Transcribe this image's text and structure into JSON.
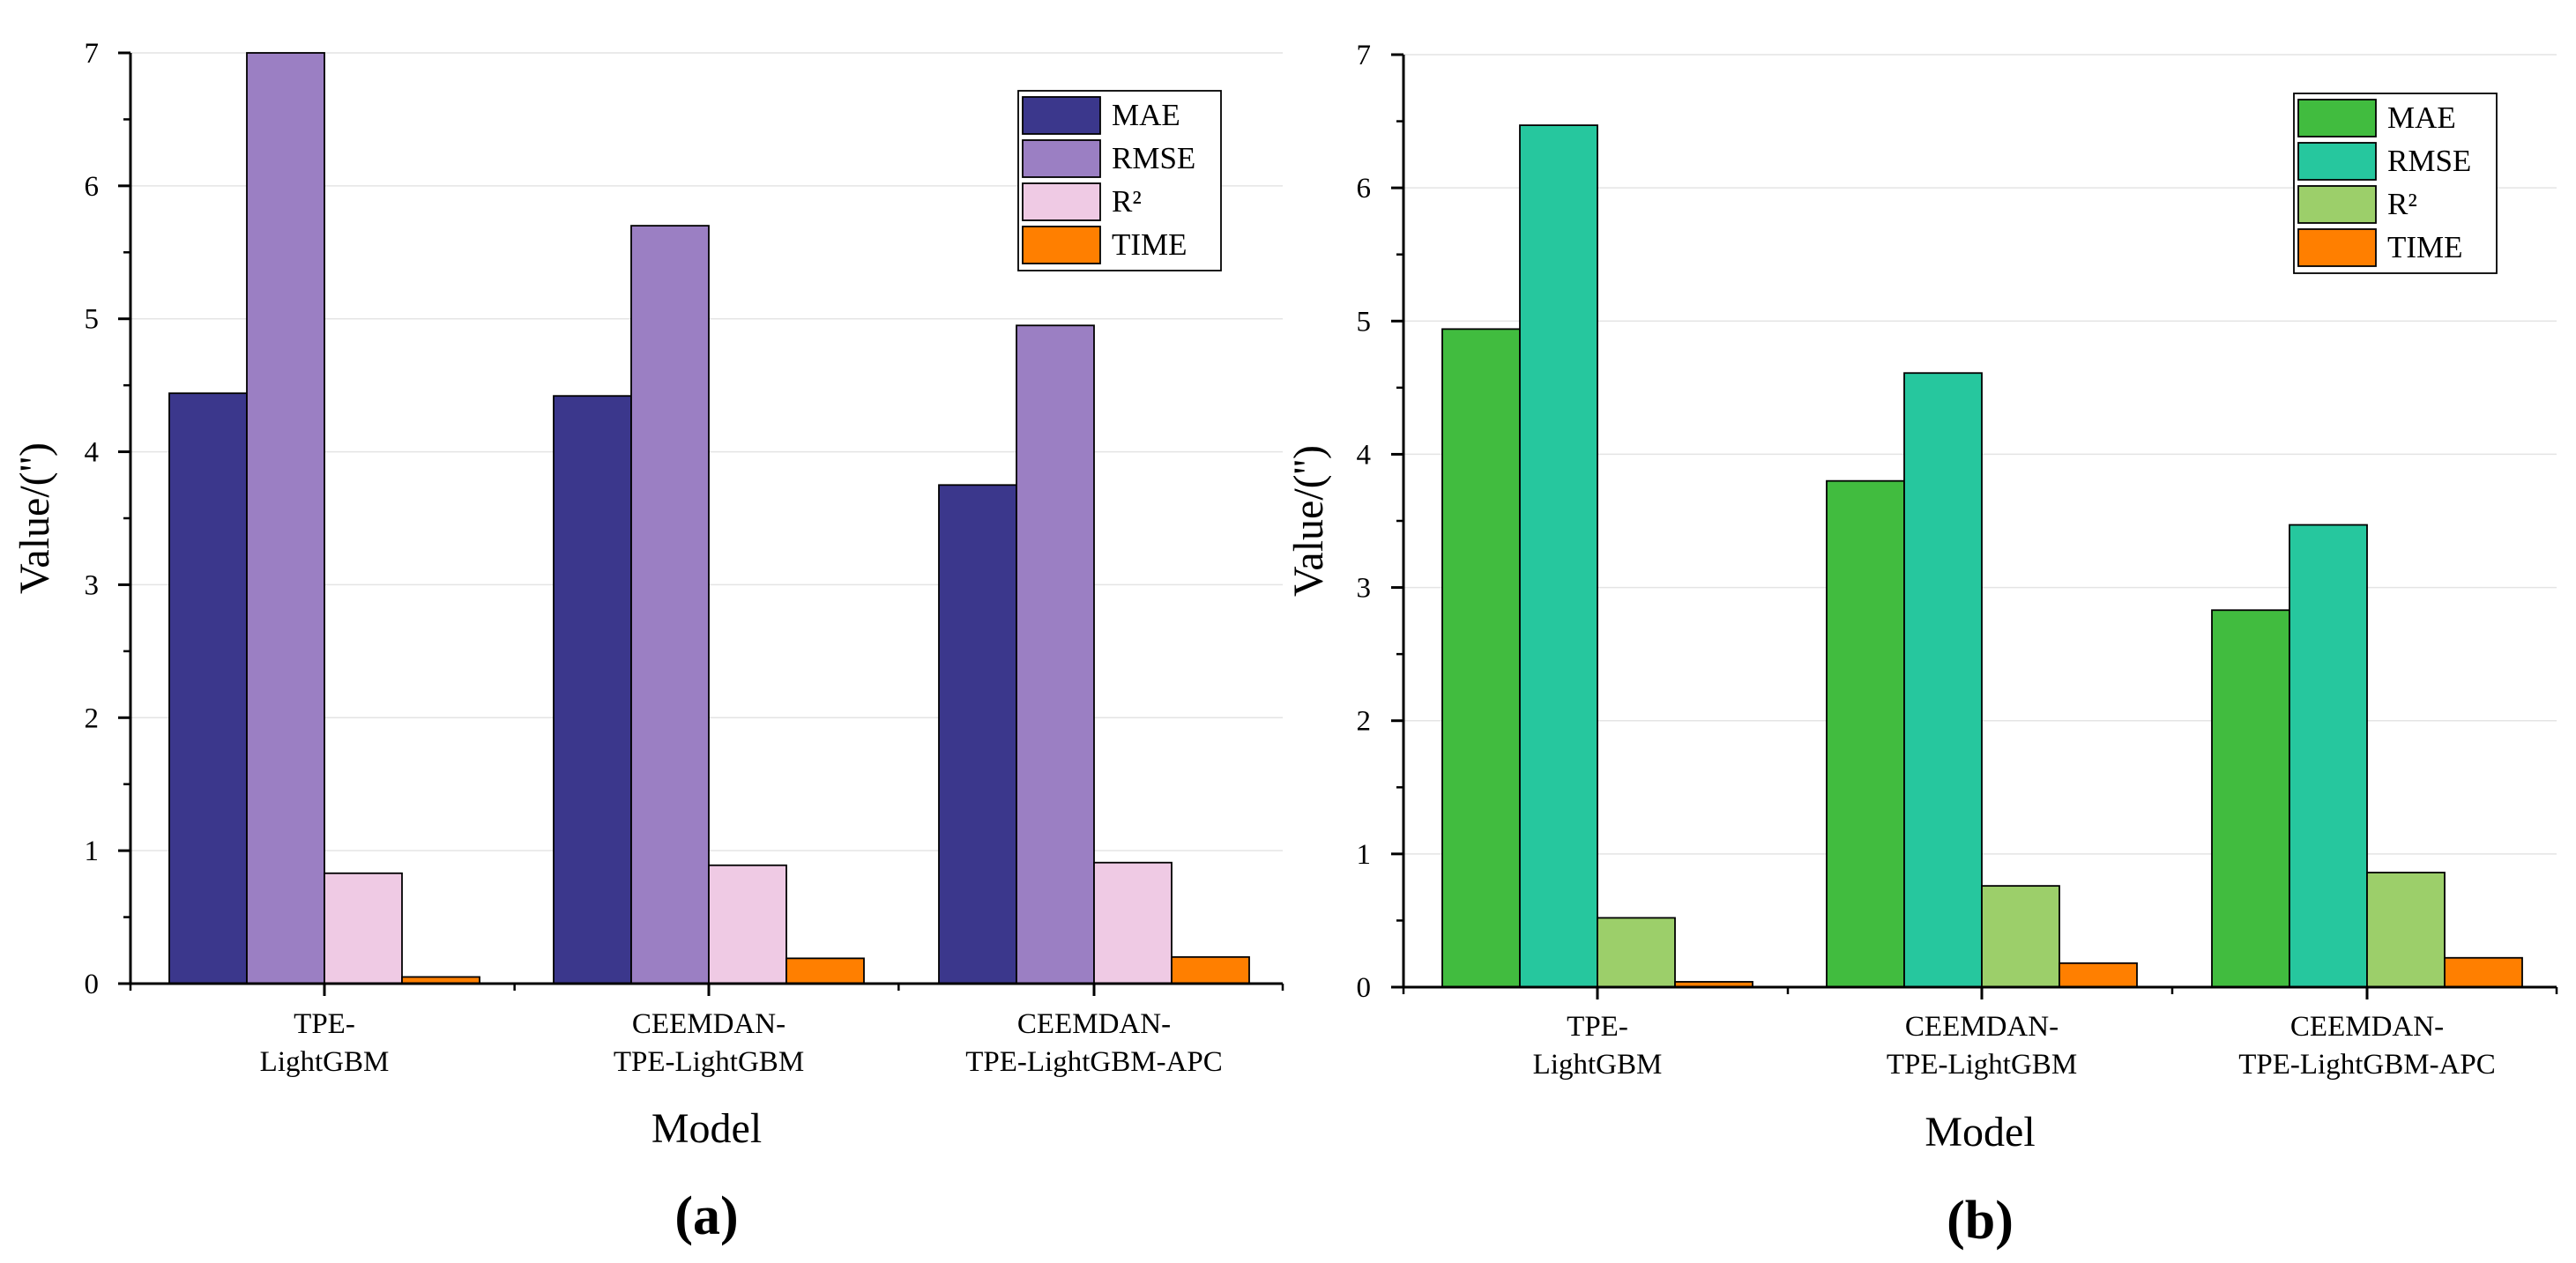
{
  "chart_data": [
    {
      "type": "bar",
      "panel_label": "(a)",
      "categories": [
        [
          "TPE-",
          "LightGBM"
        ],
        [
          "CEEMDAN-",
          "TPE-LightGBM"
        ],
        [
          "CEEMDAN-",
          "TPE-LightGBM-APC"
        ]
      ],
      "series": [
        {
          "name": "MAE",
          "color": "#3b378c",
          "values": [
            4.44,
            4.42,
            3.75
          ]
        },
        {
          "name": "RMSE",
          "color": "#9b7fc3",
          "values": [
            7.0,
            5.7,
            4.95
          ]
        },
        {
          "name": "R²",
          "color": "#efcae4",
          "values": [
            0.83,
            0.89,
            0.91
          ]
        },
        {
          "name": "TIME",
          "color": "#ff7f00",
          "values": [
            0.05,
            0.19,
            0.2
          ]
        }
      ],
      "xlabel": "Model",
      "ylabel": "Value/('')",
      "ylim": [
        0,
        7
      ],
      "yticks": [
        "0",
        "1",
        "2",
        "3",
        "4",
        "5",
        "6",
        "7"
      ],
      "legend_position": "top-right",
      "grid": true
    },
    {
      "type": "bar",
      "panel_label": "(b)",
      "categories": [
        [
          "TPE-",
          "LightGBM"
        ],
        [
          "CEEMDAN-",
          "TPE-LightGBM"
        ],
        [
          "CEEMDAN-",
          "TPE-LightGBM-APC"
        ]
      ],
      "series": [
        {
          "name": "MAE",
          "color": "#41bc3f",
          "values": [
            4.94,
            3.8,
            2.83
          ]
        },
        {
          "name": "RMSE",
          "color": "#26c79e",
          "values": [
            6.47,
            4.61,
            3.47
          ]
        },
        {
          "name": "R²",
          "color": "#9ccf6a",
          "values": [
            0.52,
            0.76,
            0.86
          ]
        },
        {
          "name": "TIME",
          "color": "#ff7f00",
          "values": [
            0.04,
            0.18,
            0.22
          ]
        }
      ],
      "xlabel": "Model",
      "ylabel": "Value/('')",
      "ylim": [
        0,
        7
      ],
      "yticks": [
        "0",
        "1",
        "2",
        "3",
        "4",
        "5",
        "6",
        "7"
      ],
      "legend_position": "top-right",
      "grid": true
    }
  ]
}
